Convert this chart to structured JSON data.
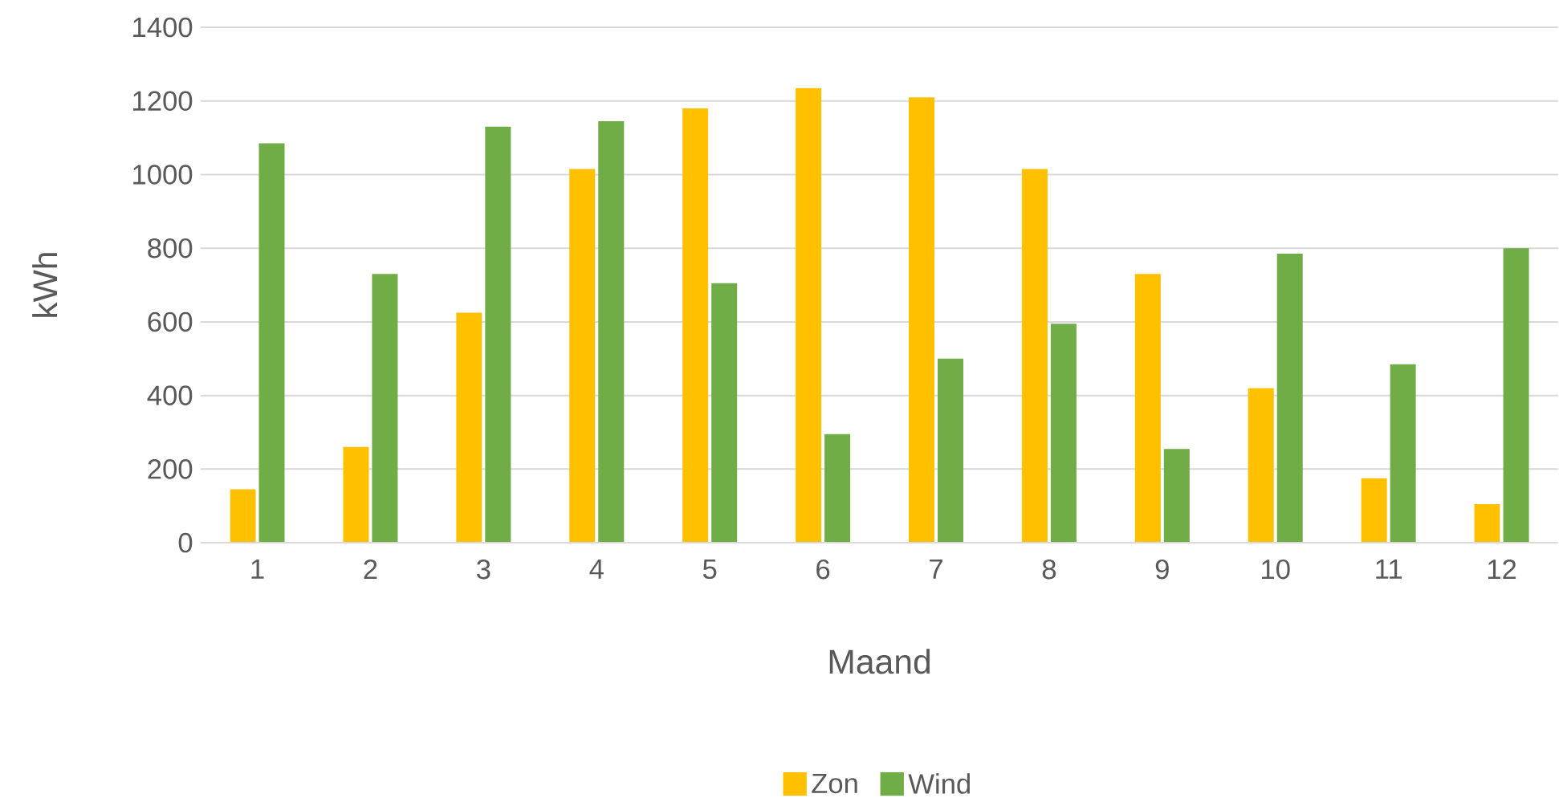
{
  "chart_data": {
    "type": "bar",
    "xlabel": "Maand",
    "ylabel": "kWh",
    "categories": [
      "1",
      "2",
      "3",
      "4",
      "5",
      "6",
      "7",
      "8",
      "9",
      "10",
      "11",
      "12"
    ],
    "series": [
      {
        "name": "Zon",
        "color": "#ffc000",
        "values": [
          145,
          260,
          625,
          1015,
          1180,
          1235,
          1210,
          1015,
          730,
          420,
          175,
          105
        ]
      },
      {
        "name": "Wind",
        "color": "#70ad47",
        "values": [
          1085,
          730,
          1130,
          1145,
          705,
          295,
          500,
          595,
          255,
          785,
          485,
          800
        ]
      }
    ],
    "ylim": [
      0,
      1400
    ],
    "yticks": [
      0,
      200,
      400,
      600,
      800,
      1000,
      1200,
      1400
    ],
    "grid": "y",
    "legend": "bottom"
  }
}
